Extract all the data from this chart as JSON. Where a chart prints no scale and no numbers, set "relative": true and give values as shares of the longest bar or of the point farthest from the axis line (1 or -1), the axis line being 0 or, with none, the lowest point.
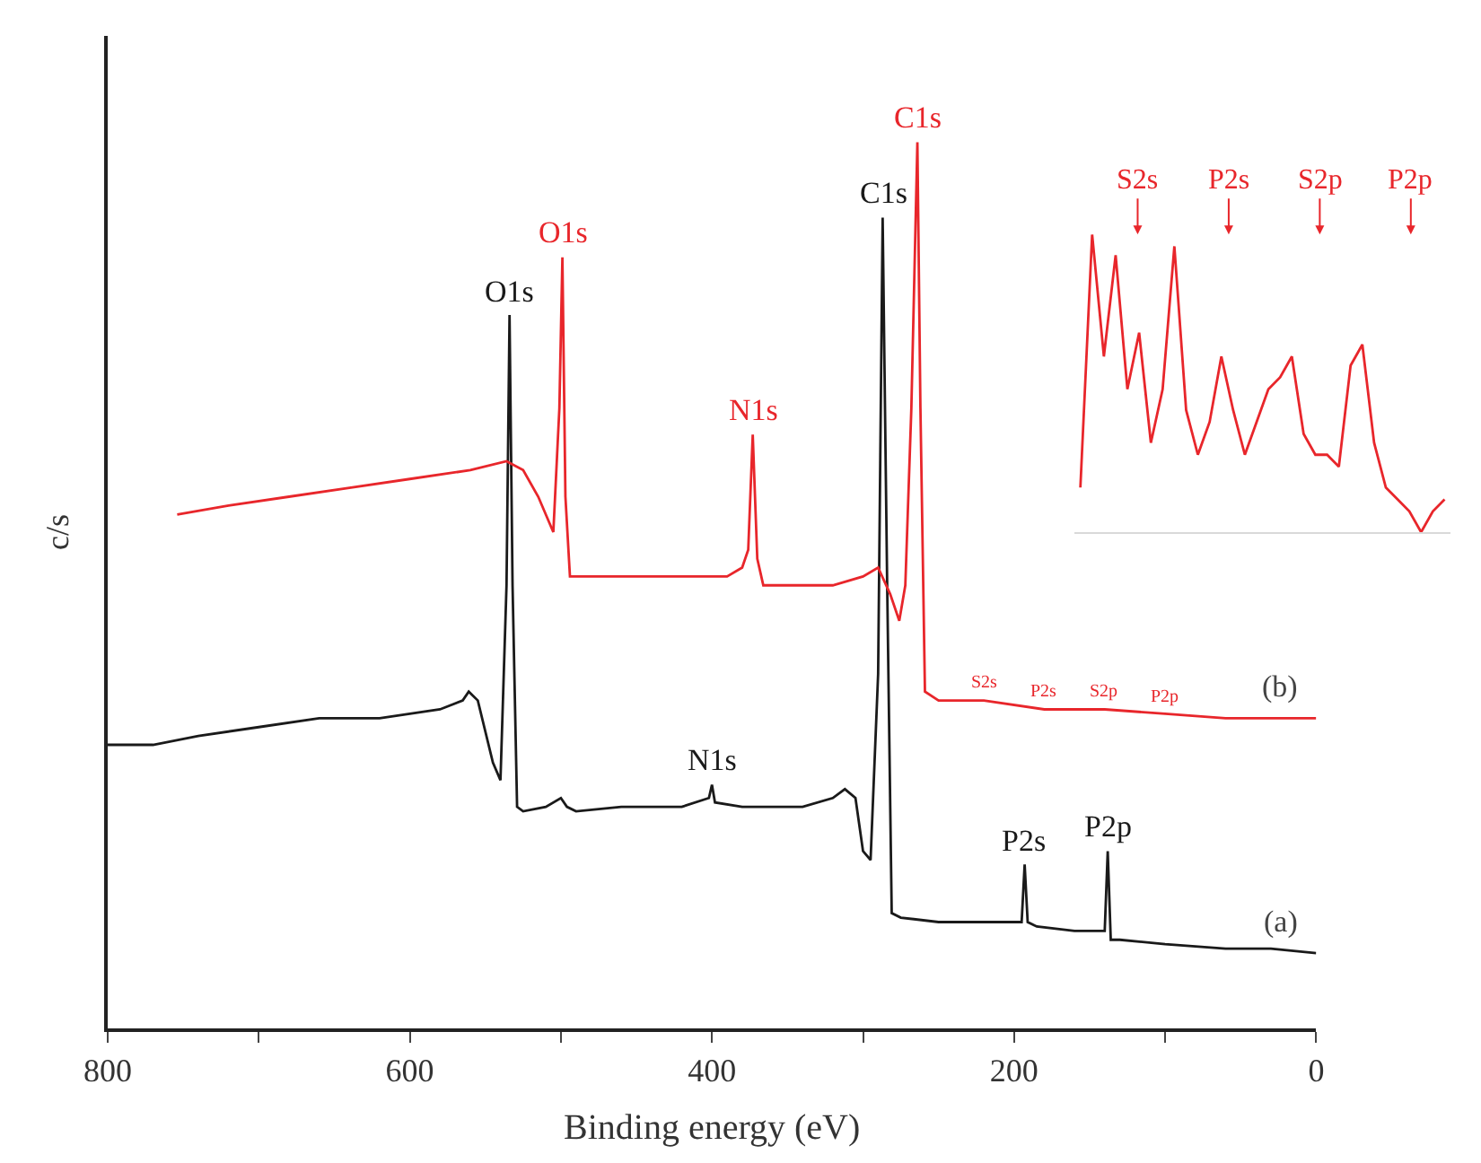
{
  "chart_data": [
    {
      "type": "line",
      "relative": true,
      "xlabel": "Binding energy (eV)",
      "ylabel": "c/s",
      "xlim": [
        800,
        0
      ],
      "xticks": [
        800,
        {
          "value": 700,
          "label": null
        },
        600,
        {
          "value": 500,
          "label": null
        },
        400,
        {
          "value": 300,
          "label": null
        },
        200,
        {
          "value": 100,
          "label": null
        },
        0
      ],
      "marker": "none",
      "series": [
        {
          "color": "#1a1a1a",
          "x": [
            800,
            770,
            740,
            700,
            660,
            620,
            580,
            565,
            561,
            555,
            545,
            540,
            536,
            534,
            532,
            529,
            525,
            510,
            500,
            496,
            490,
            460,
            420,
            402,
            400,
            398,
            380,
            340,
            320,
            312,
            305,
            300,
            295,
            290,
            287,
            284,
            281,
            275,
            250,
            220,
            195,
            193,
            191,
            185,
            160,
            140,
            138,
            136,
            130,
            100,
            60,
            30,
            0
          ],
          "values": [
            0.32,
            0.32,
            0.33,
            0.34,
            0.35,
            0.35,
            0.36,
            0.37,
            0.38,
            0.37,
            0.3,
            0.28,
            0.5,
            0.805,
            0.5,
            0.25,
            0.245,
            0.25,
            0.26,
            0.25,
            0.245,
            0.25,
            0.25,
            0.26,
            0.275,
            0.255,
            0.25,
            0.25,
            0.26,
            0.27,
            0.26,
            0.2,
            0.19,
            0.4,
            0.915,
            0.5,
            0.13,
            0.125,
            0.12,
            0.12,
            0.12,
            0.185,
            0.12,
            0.115,
            0.11,
            0.11,
            0.2,
            0.1,
            0.1,
            0.095,
            0.09,
            0.09,
            0.085
          ]
        },
        {
          "color": "#e8262b",
          "x": [
            754,
            720,
            680,
            640,
            600,
            560,
            536,
            525,
            515,
            505,
            501,
            499,
            497,
            494,
            490,
            470,
            440,
            410,
            390,
            380,
            376,
            373,
            370,
            366,
            350,
            320,
            300,
            290,
            282,
            276,
            272,
            268,
            264,
            262,
            259,
            250,
            220,
            180,
            140,
            100,
            60,
            20,
            0
          ],
          "values": [
            0.58,
            0.59,
            0.6,
            0.61,
            0.62,
            0.63,
            0.64,
            0.63,
            0.6,
            0.56,
            0.7,
            0.87,
            0.6,
            0.51,
            0.51,
            0.51,
            0.51,
            0.51,
            0.51,
            0.52,
            0.54,
            0.67,
            0.53,
            0.5,
            0.5,
            0.5,
            0.51,
            0.52,
            0.49,
            0.46,
            0.5,
            0.7,
            1.0,
            0.7,
            0.38,
            0.37,
            0.37,
            0.36,
            0.36,
            0.355,
            0.35,
            0.35,
            0.35
          ]
        }
      ],
      "annotations": [
        {
          "text": "O1s",
          "x": 534,
          "y": 0.805
        },
        {
          "text": "C1s",
          "x": 287,
          "y": 0.915
        },
        {
          "text": "N1s",
          "x": 400,
          "y": 0.275
        },
        {
          "text": "P2s",
          "x": 193,
          "y": 0.185
        },
        {
          "text": "P2p",
          "x": 138,
          "y": 0.2
        },
        "(a)",
        {
          "text": "O1s",
          "x": 499,
          "y": 0.87
        },
        {
          "text": "N1s",
          "x": 373,
          "y": 0.67
        },
        {
          "text": "C1s",
          "x": 264,
          "y": 1.0
        },
        "(b)",
        {
          "text": "S2s",
          "x": 220,
          "y": 0.37
        },
        {
          "text": "P2s",
          "x": 180,
          "y": 0.36
        },
        {
          "text": "S2p",
          "x": 140,
          "y": 0.36
        },
        {
          "text": "P2p",
          "x": 100,
          "y": 0.355
        }
      ]
    },
    {
      "type": "line",
      "relative": true,
      "marker": "none",
      "categories": [
        null,
        null,
        null,
        null,
        null,
        null,
        null,
        null,
        null,
        null,
        null,
        null,
        null,
        null,
        null,
        null,
        null,
        null,
        null,
        null,
        null,
        null,
        null,
        null,
        null,
        null,
        null,
        null,
        null,
        null,
        null,
        null
      ],
      "series": [
        {
          "color": "#e8262b",
          "values": [
            0.15,
            1.0,
            0.59,
            0.93,
            0.48,
            0.67,
            0.3,
            0.48,
            0.96,
            0.41,
            0.26,
            0.37,
            0.59,
            0.41,
            0.26,
            0.37,
            0.48,
            0.52,
            0.59,
            0.33,
            0.26,
            0.26,
            0.22,
            0.56,
            0.63,
            0.3,
            0.15,
            0.11,
            0.07,
            0.0,
            0.07,
            0.11
          ]
        }
      ],
      "annotations": [
        "S2s",
        "P2s",
        "S2p",
        "P2p"
      ]
    }
  ]
}
